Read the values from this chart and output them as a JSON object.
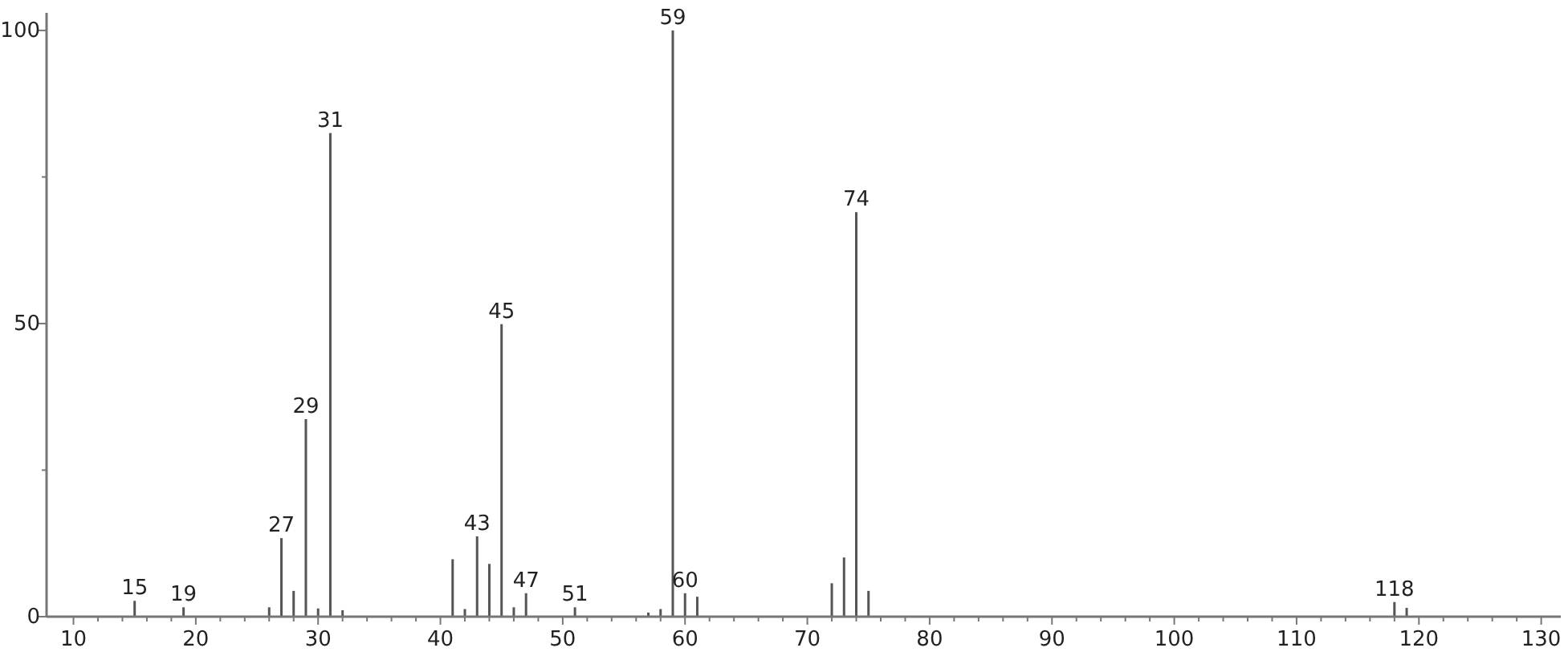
{
  "chart_data": {
    "type": "bar",
    "x": [
      15,
      19,
      26,
      27,
      28,
      29,
      30,
      31,
      32,
      41,
      42,
      43,
      44,
      45,
      46,
      47,
      51,
      57,
      58,
      59,
      60,
      61,
      72,
      73,
      74,
      75,
      118,
      119
    ],
    "values": [
      2.7,
      1.6,
      1.6,
      13.4,
      4.4,
      33.7,
      1.4,
      82.5,
      1.1,
      9.8,
      1.3,
      13.7,
      9.0,
      49.9,
      1.6,
      4.0,
      1.6,
      0.7,
      1.3,
      100,
      4.0,
      3.4,
      5.7,
      10.1,
      69.0,
      4.4,
      2.5,
      1.5
    ],
    "color": "#555555",
    "xlim": [
      7.8,
      131.6
    ],
    "xticks": [
      10,
      {
        "value": 12,
        "label": null
      },
      {
        "value": 14,
        "label": null
      },
      {
        "value": 16,
        "label": null
      },
      {
        "value": 18,
        "label": null
      },
      20,
      {
        "value": 22,
        "label": null
      },
      {
        "value": 24,
        "label": null
      },
      {
        "value": 26,
        "label": null
      },
      {
        "value": 28,
        "label": null
      },
      30,
      {
        "value": 32,
        "label": null
      },
      {
        "value": 34,
        "label": null
      },
      {
        "value": 36,
        "label": null
      },
      {
        "value": 38,
        "label": null
      },
      40,
      {
        "value": 42,
        "label": null
      },
      {
        "value": 44,
        "label": null
      },
      {
        "value": 46,
        "label": null
      },
      {
        "value": 48,
        "label": null
      },
      50,
      {
        "value": 52,
        "label": null
      },
      {
        "value": 54,
        "label": null
      },
      {
        "value": 56,
        "label": null
      },
      {
        "value": 58,
        "label": null
      },
      60,
      {
        "value": 62,
        "label": null
      },
      {
        "value": 64,
        "label": null
      },
      {
        "value": 66,
        "label": null
      },
      {
        "value": 68,
        "label": null
      },
      70,
      {
        "value": 72,
        "label": null
      },
      {
        "value": 74,
        "label": null
      },
      {
        "value": 76,
        "label": null
      },
      {
        "value": 78,
        "label": null
      },
      80,
      {
        "value": 82,
        "label": null
      },
      {
        "value": 84,
        "label": null
      },
      {
        "value": 86,
        "label": null
      },
      {
        "value": 88,
        "label": null
      },
      90,
      {
        "value": 92,
        "label": null
      },
      {
        "value": 94,
        "label": null
      },
      {
        "value": 96,
        "label": null
      },
      {
        "value": 98,
        "label": null
      },
      100,
      {
        "value": 102,
        "label": null
      },
      {
        "value": 104,
        "label": null
      },
      {
        "value": 106,
        "label": null
      },
      {
        "value": 108,
        "label": null
      },
      110,
      {
        "value": 112,
        "label": null
      },
      {
        "value": 114,
        "label": null
      },
      {
        "value": 116,
        "label": null
      },
      {
        "value": 118,
        "label": null
      },
      120,
      {
        "value": 122,
        "label": null
      },
      {
        "value": 124,
        "label": null
      },
      {
        "value": 126,
        "label": null
      },
      {
        "value": 128,
        "label": null
      },
      130
    ],
    "ylim": [
      0,
      103
    ],
    "yticks": [
      0,
      {
        "value": 25,
        "label": null
      },
      50,
      {
        "value": 75,
        "label": null
      },
      100
    ],
    "annotations": [
      {
        "text": "15",
        "x": 15,
        "y": 2.7
      },
      {
        "text": "19",
        "x": 19,
        "y": 1.6
      },
      {
        "text": "27",
        "x": 27,
        "y": 13.4
      },
      {
        "text": "29",
        "x": 29,
        "y": 33.7
      },
      {
        "text": "31",
        "x": 31,
        "y": 82.5
      },
      {
        "text": "43",
        "x": 43,
        "y": 13.7
      },
      {
        "text": "45",
        "x": 45,
        "y": 49.9
      },
      {
        "text": "47",
        "x": 47,
        "y": 4.0
      },
      {
        "text": "51",
        "x": 51,
        "y": 1.6
      },
      {
        "text": "59",
        "x": 59,
        "y": 100
      },
      {
        "text": "60",
        "x": 60,
        "y": 4.0
      },
      {
        "text": "74",
        "x": 74,
        "y": 69.0
      },
      {
        "text": "118",
        "x": 118,
        "y": 2.5
      }
    ]
  }
}
